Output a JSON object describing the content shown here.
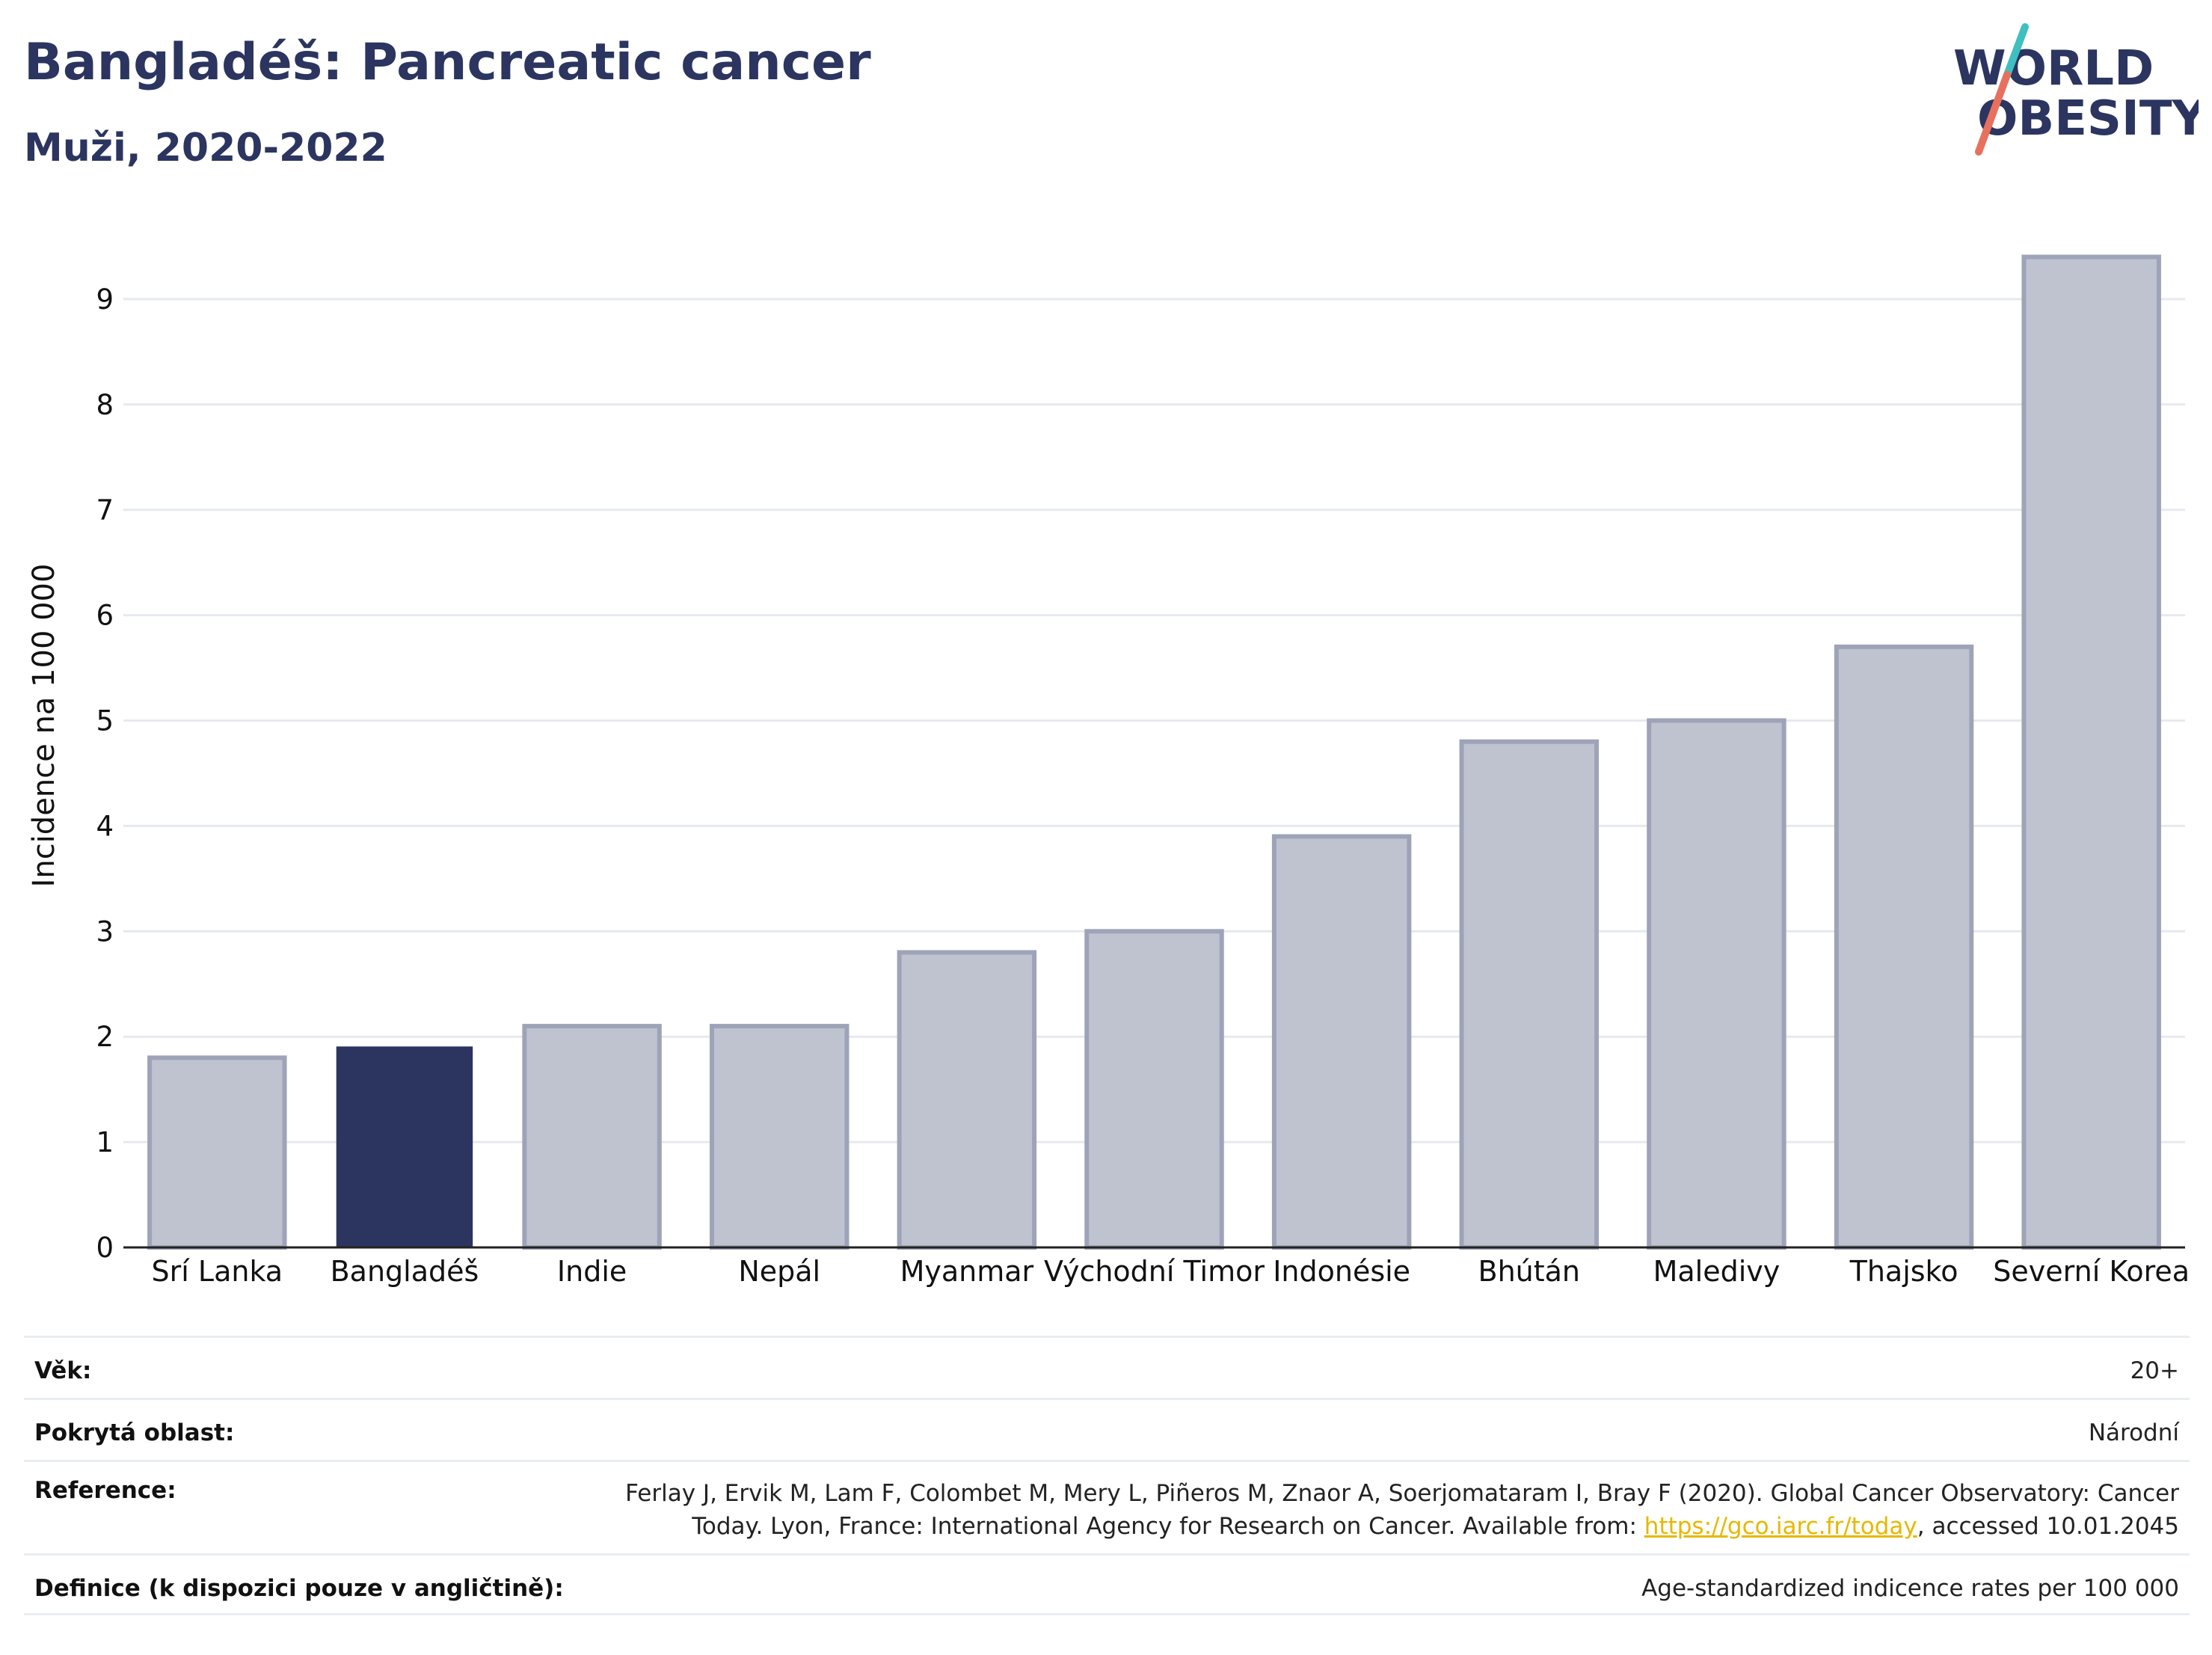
{
  "header": {
    "title": "Bangladéš: Pancreatic cancer",
    "subtitle": "Muži, 2020-2022"
  },
  "logo": {
    "line1": "WORLD",
    "line2": "OBESITY"
  },
  "colors": {
    "highlight": "#2b3560",
    "bar_fill": "#bfc3d0",
    "bar_stroke": "#9ea3b8",
    "grid": "#e6e9ee",
    "logo_teal": "#3fbfbf",
    "logo_coral": "#e8705f",
    "link": "#e6b800"
  },
  "chart_data": {
    "type": "bar",
    "title": "Bangladéš: Pancreatic cancer",
    "subtitle": "Muži, 2020-2022",
    "xlabel": "",
    "ylabel": "Incidence na 100 000",
    "categories": [
      "Srí Lanka",
      "Bangladéš",
      "Indie",
      "Nepál",
      "Myanmar",
      "Východní Timor",
      "Indonésie",
      "Bhútán",
      "Maledivy",
      "Thajsko",
      "Severní Korea"
    ],
    "values": [
      1.8,
      1.9,
      2.1,
      2.1,
      2.8,
      3.0,
      3.9,
      4.8,
      5.0,
      5.7,
      9.4
    ],
    "highlight_category": "Bangladéš",
    "ylim": [
      0,
      9.4
    ],
    "yticks": [
      "0",
      "1",
      "2",
      "3",
      "4",
      "5",
      "6",
      "7",
      "8",
      "9"
    ],
    "grid": true,
    "legend": "none"
  },
  "info": {
    "age_label": "Věk:",
    "age_value": "20+",
    "area_label": "Pokrytá oblast:",
    "area_value": "Národní",
    "reference_label": "Reference:",
    "reference_line1": "Ferlay J, Ervik M, Lam F, Colombet M, Mery L, Piñeros M, Znaor A, Soerjomataram I, Bray F (2020). Global Cancer Observatory: Cancer",
    "reference_line2_prefix": "Today. Lyon, France: International Agency for Research on Cancer. Available from: ",
    "reference_link": "https://gco.iarc.fr/today",
    "reference_line2_suffix": ", accessed 10.01.2045",
    "definition_label": "Definice (k dispozici pouze v angličtině):",
    "definition_value": "Age-standardized indicence rates per 100 000"
  }
}
